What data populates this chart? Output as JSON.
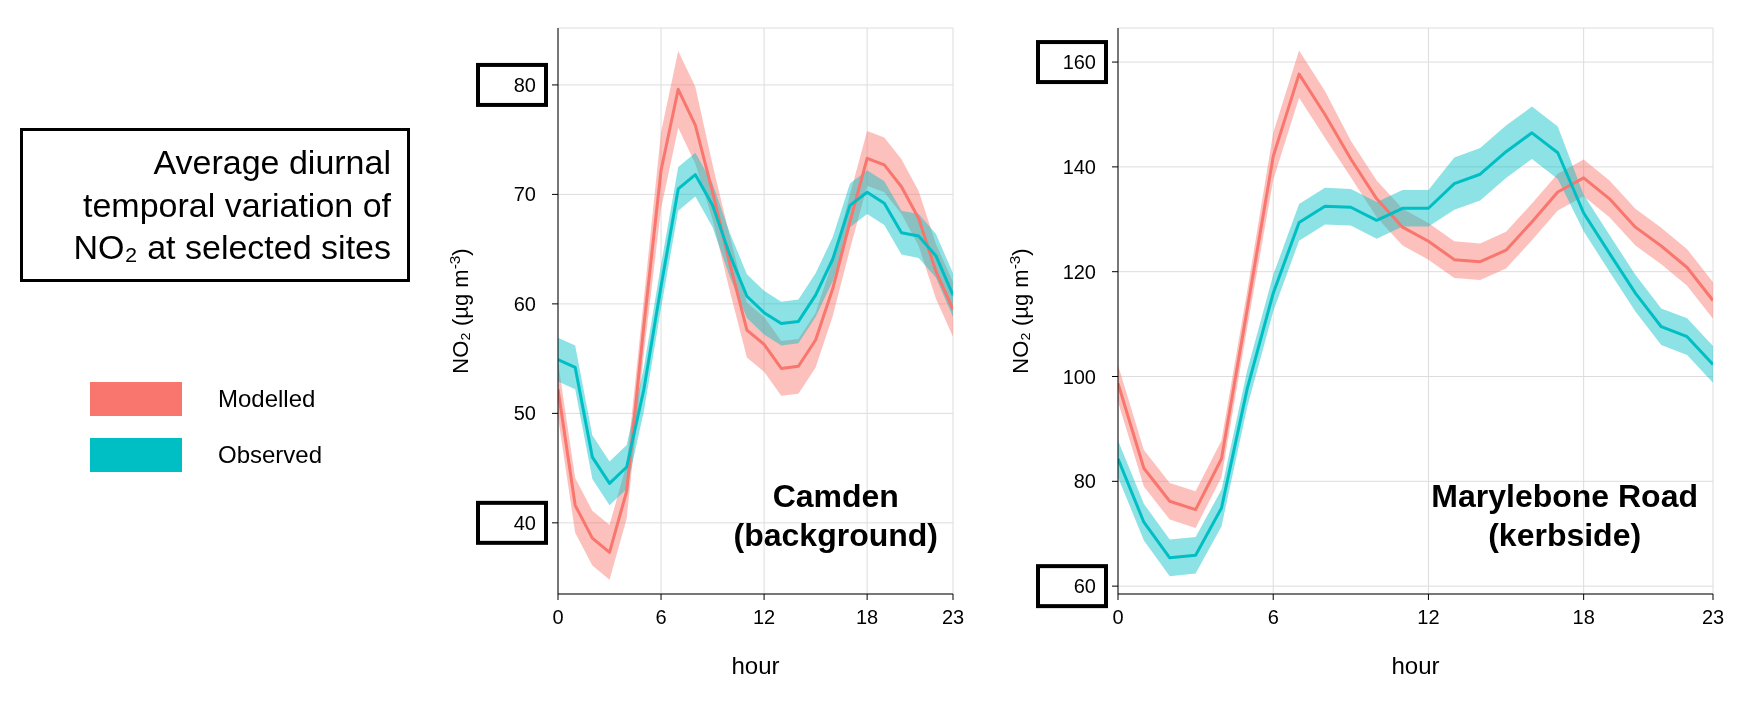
{
  "chart_data": [
    {
      "type": "line",
      "title": "Average diurnal temporal variation of NO₂ at selected sites",
      "legend": "left",
      "grid": true,
      "marker": "none",
      "line_style": "solid",
      "xlabel": "hour",
      "ylabel": "NO₂ (µg m$^{-3}$)",
      "annotations": [
        "Camden\n(background)"
      ],
      "x": [
        0,
        1,
        2,
        3,
        4,
        5,
        6,
        7,
        8,
        9,
        10,
        11,
        12,
        13,
        14,
        15,
        16,
        17,
        18,
        19,
        20,
        21,
        22,
        23
      ],
      "xlim": [
        0,
        23
      ],
      "xticks": [
        0,
        6,
        12,
        18,
        23
      ],
      "ylim": [
        33.5,
        85.2
      ],
      "yticks": [
        40,
        50,
        60,
        70,
        80
      ],
      "series": [
        {
          "name": "Modelled",
          "color": "#f8766d",
          "values": [
            52.2,
            41.6,
            38.6,
            37.3,
            42.9,
            58,
            72.2,
            79.6,
            76.3,
            70.2,
            63.7,
            57.6,
            56.3,
            54.1,
            54.3,
            56.7,
            61.4,
            67.5,
            73.3,
            72.7,
            70.7,
            67.8,
            63,
            59.5
          ],
          "lower": [
            49.7,
            39.1,
            36.1,
            34.8,
            40.4,
            55.5,
            68.7,
            76.1,
            72.8,
            67.7,
            61.2,
            55.1,
            53.8,
            51.6,
            51.8,
            54.2,
            58.9,
            65,
            70.8,
            70.2,
            68.2,
            65.3,
            60.5,
            57
          ],
          "upper": [
            54.7,
            44.1,
            41.1,
            39.8,
            45.4,
            60.5,
            75.7,
            83.1,
            79.8,
            72.7,
            66.2,
            60.1,
            58.8,
            56.6,
            56.8,
            59.2,
            63.9,
            70,
            75.8,
            75.2,
            73.2,
            70.3,
            65.5,
            62
          ]
        },
        {
          "name": "Observed",
          "color": "#00bfc4",
          "values": [
            54.9,
            54.2,
            46,
            43.6,
            45.1,
            52.2,
            61.6,
            70.5,
            71.8,
            69,
            64.5,
            60.7,
            59.2,
            58.2,
            58.4,
            60.8,
            64.1,
            69,
            70.2,
            69.2,
            66.5,
            66.2,
            64.4,
            60.8
          ],
          "lower": [
            52.9,
            52.2,
            44,
            41.6,
            43.1,
            50.2,
            59.6,
            68.5,
            69.8,
            67,
            62.5,
            58.7,
            57.2,
            56.2,
            56.4,
            58.8,
            62.1,
            67,
            68.2,
            67.2,
            64.5,
            64.2,
            62.4,
            58.8
          ],
          "upper": [
            56.9,
            56.2,
            48,
            45.6,
            47.1,
            54.2,
            63.6,
            72.5,
            73.8,
            71,
            66.5,
            62.7,
            61.2,
            60.2,
            60.4,
            62.8,
            66.1,
            71,
            72.2,
            71.2,
            68.5,
            68.2,
            66.4,
            62.8
          ]
        }
      ]
    },
    {
      "type": "line",
      "grid": true,
      "marker": "none",
      "line_style": "solid",
      "xlabel": "hour",
      "ylabel": "NO₂ (µg m$^{-3}$)",
      "annotations": [
        "Marylebone Road\n(kerbside)"
      ],
      "x": [
        0,
        1,
        2,
        3,
        4,
        5,
        6,
        7,
        8,
        9,
        10,
        11,
        12,
        13,
        14,
        15,
        16,
        17,
        18,
        19,
        20,
        21,
        22,
        23
      ],
      "xlim": [
        0,
        23
      ],
      "xticks": [
        0,
        6,
        12,
        18,
        23
      ],
      "ylim": [
        58.5,
        166.5
      ],
      "yticks": [
        60,
        80,
        100,
        120,
        140,
        160
      ],
      "series": [
        {
          "color": "#f8766d",
          "values": [
            98.7,
            82.5,
            76.2,
            74.6,
            84.3,
            113,
            142,
            157.7,
            150,
            141.5,
            133.9,
            128.5,
            125.8,
            122.3,
            121.9,
            124.1,
            129.5,
            135.2,
            137.9,
            133.9,
            128.5,
            124.9,
            120.8,
            114.5
          ],
          "lower": [
            95.2,
            79,
            72.7,
            71.1,
            80.8,
            109.5,
            137.5,
            153.2,
            145.5,
            138,
            130.4,
            125,
            122.3,
            118.8,
            118.4,
            120.6,
            126,
            131.7,
            134.4,
            130.4,
            125,
            121.4,
            117.3,
            111
          ],
          "upper": [
            102.2,
            86,
            79.7,
            78.1,
            87.8,
            116.5,
            146.5,
            162.2,
            154.5,
            145,
            137.4,
            132,
            129.3,
            125.8,
            125.4,
            127.6,
            133,
            138.7,
            141.4,
            137.4,
            132,
            128.4,
            124.3,
            118
          ]
        },
        {
          "color": "#00bfc4",
          "values": [
            84.3,
            72.2,
            65.4,
            65.9,
            74.9,
            97.8,
            115.9,
            129.4,
            132.5,
            132.3,
            129.8,
            132.1,
            132.1,
            136.8,
            138.6,
            142.9,
            146.5,
            142.7,
            131.2,
            123.5,
            115.9,
            109.5,
            107.6,
            102.3
          ],
          "lower": [
            80.8,
            68.7,
            61.9,
            62.4,
            71.4,
            94.3,
            112.4,
            125.9,
            129,
            128.8,
            126.3,
            128.6,
            128.6,
            131.8,
            133.6,
            137.9,
            141.5,
            137.7,
            127.7,
            120,
            112.4,
            106,
            104.1,
            98.8
          ],
          "upper": [
            87.8,
            75.7,
            68.9,
            69.4,
            78.4,
            101.3,
            119.4,
            132.9,
            136,
            135.8,
            133.3,
            135.6,
            135.6,
            141.8,
            143.6,
            147.9,
            151.5,
            147.7,
            134.7,
            127,
            119.4,
            113,
            111.1,
            105.8
          ]
        }
      ]
    }
  ]
}
